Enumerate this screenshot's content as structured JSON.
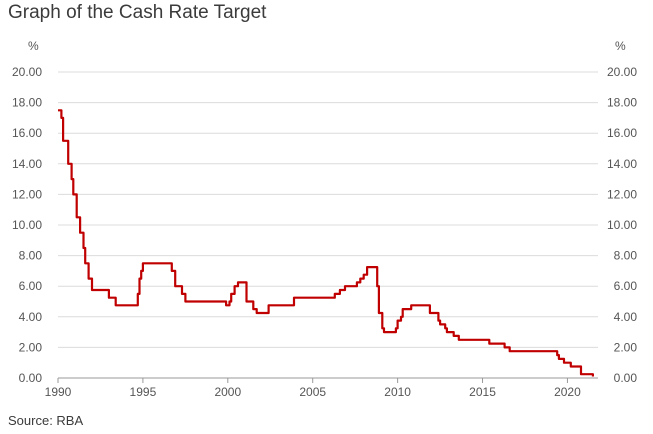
{
  "title": "Graph of the Cash Rate Target",
  "source": "Source: RBA",
  "chart_data": {
    "type": "line",
    "title": "Graph of the Cash Rate Target",
    "unit_left": "%",
    "unit_right": "%",
    "ylim": [
      0,
      20
    ],
    "xlim": [
      1990,
      2021.8
    ],
    "y_ticks": [
      "0.00",
      "2.00",
      "4.00",
      "6.00",
      "8.00",
      "10.00",
      "12.00",
      "14.00",
      "16.00",
      "18.00",
      "20.00"
    ],
    "x_ticks": [
      "1990",
      "1995",
      "2000",
      "2005",
      "2010",
      "2015",
      "2020"
    ],
    "grid": true,
    "line_color": "#c00000",
    "series": [
      {
        "x": [
          1990.0,
          1990.2,
          1990.3,
          1990.6,
          1990.8,
          1990.9,
          1991.1,
          1991.3,
          1991.5,
          1991.6,
          1991.8,
          1992.0,
          1992.2,
          1992.4,
          1992.5,
          1993.0,
          1993.4,
          1994.6,
          1994.7,
          1994.8,
          1994.9,
          1995.0,
          1996.5,
          1996.7,
          1996.9,
          1997.3,
          1997.5,
          1998.8,
          1999.9,
          2000.1,
          2000.2,
          2000.4,
          2000.6,
          2000.8,
          2001.1,
          2001.3,
          2001.5,
          2001.7,
          2001.9,
          2002.4,
          2002.6,
          2003.8,
          2003.9,
          2005.1,
          2006.3,
          2006.6,
          2006.9,
          2007.6,
          2007.8,
          2008.0,
          2008.2,
          2008.7,
          2008.8,
          2008.9,
          2009.1,
          2009.2,
          2009.8,
          2009.9,
          2010.0,
          2010.2,
          2010.3,
          2010.8,
          2011.8,
          2011.9,
          2012.4,
          2012.5,
          2012.8,
          2012.9,
          2013.3,
          2013.6,
          2015.1,
          2015.4,
          2016.3,
          2016.6,
          2019.4,
          2019.5,
          2019.8,
          2020.2,
          2020.8,
          2021.5
        ],
        "values": [
          17.5,
          17.0,
          15.5,
          14.0,
          13.0,
          12.0,
          10.5,
          9.5,
          8.5,
          7.5,
          6.5,
          5.75,
          5.75,
          5.75,
          5.75,
          5.25,
          4.75,
          4.75,
          5.5,
          6.5,
          7.0,
          7.5,
          7.5,
          7.0,
          6.0,
          5.5,
          5.0,
          5.0,
          4.75,
          5.0,
          5.5,
          6.0,
          6.25,
          6.25,
          5.0,
          5.0,
          4.5,
          4.25,
          4.25,
          4.75,
          4.75,
          4.75,
          5.25,
          5.25,
          5.5,
          5.75,
          6.0,
          6.25,
          6.5,
          6.75,
          7.25,
          7.25,
          6.0,
          4.25,
          3.25,
          3.0,
          3.0,
          3.25,
          3.75,
          4.0,
          4.5,
          4.75,
          4.75,
          4.25,
          3.75,
          3.5,
          3.25,
          3.0,
          2.75,
          2.5,
          2.5,
          2.25,
          2.0,
          1.75,
          1.5,
          1.25,
          1.0,
          0.75,
          0.25,
          0.1
        ]
      }
    ]
  }
}
